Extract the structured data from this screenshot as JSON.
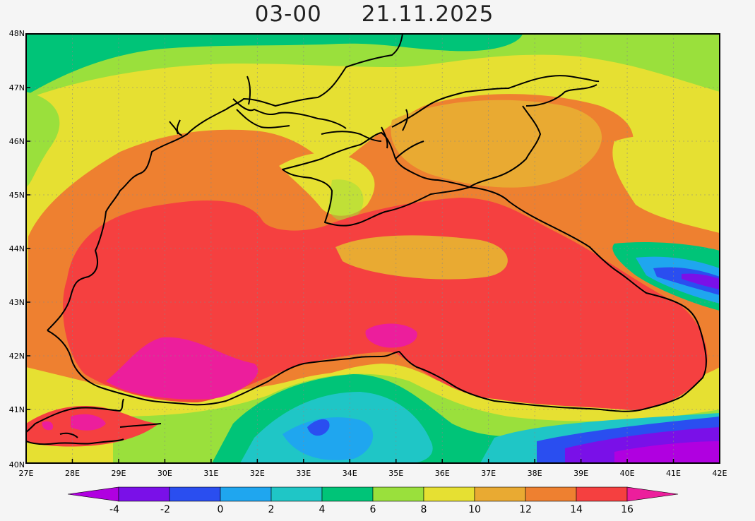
{
  "title": {
    "time": "03-00",
    "date": "21.11.2025"
  },
  "map": {
    "lat_labels": [
      "48N",
      "47N",
      "46N",
      "45N",
      "44N",
      "43N",
      "42N",
      "41N",
      "40N"
    ],
    "lon_labels": [
      "27E",
      "28E",
      "29E",
      "30E",
      "31E",
      "32E",
      "33E",
      "34E",
      "35E",
      "36E",
      "37E",
      "38E",
      "39E",
      "40E",
      "41E",
      "42E"
    ],
    "lat_range": [
      40,
      48
    ],
    "lon_range": [
      27,
      42
    ]
  },
  "colorbar": {
    "tick_labels": [
      "-4",
      "-2",
      "0",
      "2",
      "4",
      "6",
      "8",
      "10",
      "12",
      "14",
      "16"
    ],
    "colors": [
      "#b000e0",
      "#7a10e8",
      "#2a4ef0",
      "#1fa6ef",
      "#1fc6c6",
      "#00c478",
      "#9ae03c",
      "#e6e032",
      "#e9aa32",
      "#ee8030",
      "#f54040",
      "#ec1e9c"
    ]
  }
}
